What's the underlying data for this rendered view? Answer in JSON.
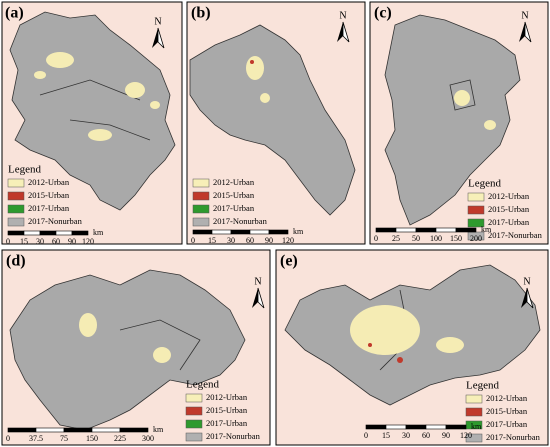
{
  "panels": [
    {
      "label": "(a)",
      "north": "N",
      "legend": {
        "title": "Legend",
        "items": [
          "2012-Urban",
          "2015-Urban",
          "2017-Urban",
          "2017-Nonurban"
        ]
      },
      "scale": {
        "ticks": [
          "0",
          "15",
          "30",
          "60",
          "90",
          "120"
        ],
        "unit": "km"
      }
    },
    {
      "label": "(b)",
      "north": "N",
      "legend": {
        "items": [
          "2012-Urban",
          "2015-Urban",
          "2017-Urban",
          "2017-Nonurban"
        ]
      },
      "scale": {
        "ticks": [
          "0",
          "15",
          "30",
          "60",
          "90",
          "120"
        ],
        "unit": "km"
      }
    },
    {
      "label": "(c)",
      "north": "N",
      "legend": {
        "title": "Legend",
        "items": [
          "2012-Urban",
          "2015-Urban",
          "2017-Urban",
          "2017-Nonurban"
        ]
      },
      "scale": {
        "ticks": [
          "0",
          "25",
          "50",
          "100",
          "150",
          "200"
        ],
        "unit": "km"
      }
    },
    {
      "label": "(d)",
      "north": "N",
      "legend": {
        "title": "Legend",
        "items": [
          "2012-Urban",
          "2015-Urban",
          "2017-Urban",
          "2017-Nonurban"
        ]
      },
      "scale": {
        "ticks": [
          "0",
          "37.5",
          "75",
          "150",
          "225",
          "300"
        ],
        "unit": "km"
      }
    },
    {
      "label": "(e)",
      "north": "N",
      "legend": {
        "title": "Legend",
        "items": [
          "2012-Urban",
          "2015-Urban",
          "2017-Urban",
          "2017-Nonurban"
        ]
      },
      "scale": {
        "ticks": [
          "0",
          "15",
          "30",
          "60",
          "90",
          "120"
        ],
        "unit": "km"
      }
    }
  ],
  "legend_colors": [
    "#f7efb8",
    "#c0392b",
    "#2e9a2e",
    "#b0b0b0"
  ]
}
